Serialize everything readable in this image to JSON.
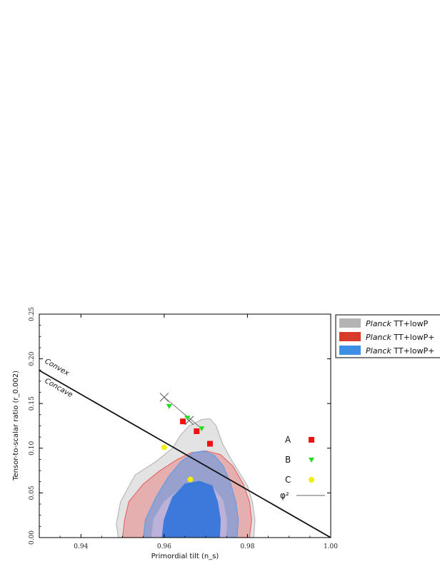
{
  "chart_data": {
    "type": "scatter",
    "xlabel": "Primordial tilt (n_s)",
    "ylabel": "Tensor-to-scalar ratio (r_0.002)",
    "xlim": [
      0.93,
      1.0
    ],
    "ylim": [
      0.0,
      0.25
    ],
    "x_ticks": [
      0.94,
      0.96,
      0.98,
      1.0
    ],
    "y_ticks": [
      0.0,
      0.05,
      0.1,
      0.15,
      0.2,
      0.25
    ],
    "x_tick_labels": [
      "0.94",
      "0.96",
      "0.98",
      "1.00"
    ],
    "y_tick_labels": [
      "0.00",
      "0.05",
      "0.10",
      "0.15",
      "0.20",
      "0.25"
    ],
    "grid": false,
    "annotations": [
      {
        "text": "Convex",
        "x": 0.9312,
        "y": 0.196
      },
      {
        "text": "Concave",
        "x": 0.9312,
        "y": 0.174
      }
    ],
    "divider_line": {
      "x": [
        0.93,
        1.0
      ],
      "y": [
        0.187,
        0.0
      ]
    },
    "contour_legend": {
      "placement": "top-right outside plot",
      "entries": [
        {
          "italic": "Planck",
          "text": " TT+lowP",
          "color": "#b4b4b4"
        },
        {
          "italic": "Planck",
          "text": " TT+lowP+",
          "color": "#d93b2b"
        },
        {
          "italic": "Planck",
          "text": " TT+lowP+",
          "color": "#3f8ee6"
        }
      ]
    },
    "contours": [
      {
        "color": "#b8b8b8",
        "fill": "rgba(175,175,175,0.35)",
        "points": [
          [
            0.949,
            0.0
          ],
          [
            0.9485,
            0.015
          ],
          [
            0.9495,
            0.04
          ],
          [
            0.953,
            0.07
          ],
          [
            0.958,
            0.085
          ],
          [
            0.962,
            0.1
          ],
          [
            0.964,
            0.115
          ],
          [
            0.966,
            0.125
          ],
          [
            0.969,
            0.132
          ],
          [
            0.971,
            0.133
          ],
          [
            0.9725,
            0.125
          ],
          [
            0.974,
            0.105
          ],
          [
            0.976,
            0.088
          ],
          [
            0.978,
            0.073
          ],
          [
            0.98,
            0.058
          ],
          [
            0.9812,
            0.04
          ],
          [
            0.9818,
            0.02
          ],
          [
            0.9815,
            0.0
          ]
        ]
      },
      {
        "color": "#e46a6a",
        "fill": "rgba(232,110,110,0.45)",
        "points": [
          [
            0.95,
            0.0
          ],
          [
            0.9505,
            0.02
          ],
          [
            0.9515,
            0.04
          ],
          [
            0.955,
            0.06
          ],
          [
            0.959,
            0.075
          ],
          [
            0.963,
            0.087
          ],
          [
            0.9665,
            0.095
          ],
          [
            0.97,
            0.097
          ],
          [
            0.9735,
            0.093
          ],
          [
            0.9765,
            0.08
          ],
          [
            0.979,
            0.06
          ],
          [
            0.9805,
            0.04
          ],
          [
            0.981,
            0.02
          ],
          [
            0.9805,
            0.0
          ]
        ]
      },
      {
        "color": "#5e9ee8",
        "fill": "rgba(88,150,232,0.55)",
        "points": [
          [
            0.955,
            0.0
          ],
          [
            0.9555,
            0.02
          ],
          [
            0.958,
            0.045
          ],
          [
            0.961,
            0.068
          ],
          [
            0.964,
            0.085
          ],
          [
            0.967,
            0.095
          ],
          [
            0.9695,
            0.097
          ],
          [
            0.972,
            0.092
          ],
          [
            0.9742,
            0.08
          ],
          [
            0.976,
            0.06
          ],
          [
            0.9772,
            0.04
          ],
          [
            0.9778,
            0.02
          ],
          [
            0.9775,
            0.0
          ]
        ]
      },
      {
        "color": "#b9b2d8",
        "fill": "rgba(195,180,220,0.85)",
        "points": [
          [
            0.957,
            0.0
          ],
          [
            0.9575,
            0.02
          ],
          [
            0.96,
            0.04
          ],
          [
            0.964,
            0.055
          ],
          [
            0.968,
            0.06
          ],
          [
            0.9715,
            0.057
          ],
          [
            0.974,
            0.042
          ],
          [
            0.975,
            0.02
          ],
          [
            0.9748,
            0.0
          ]
        ]
      },
      {
        "color": "#3d7fd8",
        "fill": "rgba(45,115,218,0.9)",
        "points": [
          [
            0.9595,
            0.0
          ],
          [
            0.96,
            0.02
          ],
          [
            0.962,
            0.045
          ],
          [
            0.965,
            0.06
          ],
          [
            0.9685,
            0.063
          ],
          [
            0.9715,
            0.058
          ],
          [
            0.9728,
            0.04
          ],
          [
            0.9735,
            0.02
          ],
          [
            0.9733,
            0.0
          ]
        ]
      }
    ],
    "series": [
      {
        "name": "A",
        "marker": "square",
        "color": "#ee1111",
        "x": [
          0.9645,
          0.9678,
          0.971
        ],
        "y": [
          0.13,
          0.119,
          0.105
        ]
      },
      {
        "name": "B",
        "marker": "triangle-down",
        "color": "#22dd22",
        "x": [
          0.9612,
          0.9656,
          0.969
        ],
        "y": [
          0.147,
          0.134,
          0.122
        ]
      },
      {
        "name": "C",
        "marker": "circle",
        "color": "#f0ee10",
        "x": [
          0.96,
          0.9663
        ],
        "y": [
          0.101,
          0.065
        ]
      }
    ],
    "phi2_line": {
      "name": "φ²",
      "color": "#666666",
      "x": [
        0.96,
        0.969
      ],
      "y": [
        0.157,
        0.122
      ],
      "crosses": [
        [
          0.96,
          0.157
        ],
        [
          0.966,
          0.131
        ]
      ]
    }
  }
}
